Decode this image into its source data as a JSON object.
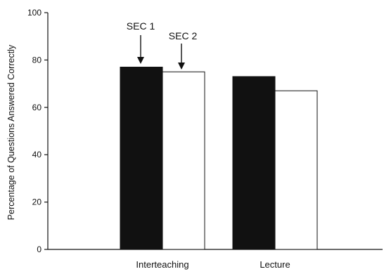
{
  "chart_data": {
    "type": "bar",
    "categories": [
      "Interteaching",
      "Lecture"
    ],
    "series": [
      {
        "name": "SEC 1",
        "values": [
          77,
          73
        ],
        "color": "#111111"
      },
      {
        "name": "SEC 2",
        "values": [
          75,
          67
        ],
        "color": "#ffffff"
      }
    ],
    "xlabel": "",
    "ylabel": "Percentage of Questions Answered Correctly",
    "ylim": [
      0,
      100
    ],
    "yticks": [
      0,
      20,
      40,
      60,
      80,
      100
    ],
    "grid": false,
    "annotations": [
      {
        "text": "SEC 1",
        "category": "Interteaching",
        "series": "SEC 1"
      },
      {
        "text": "SEC 2",
        "category": "Interteaching",
        "series": "SEC 2"
      }
    ]
  }
}
